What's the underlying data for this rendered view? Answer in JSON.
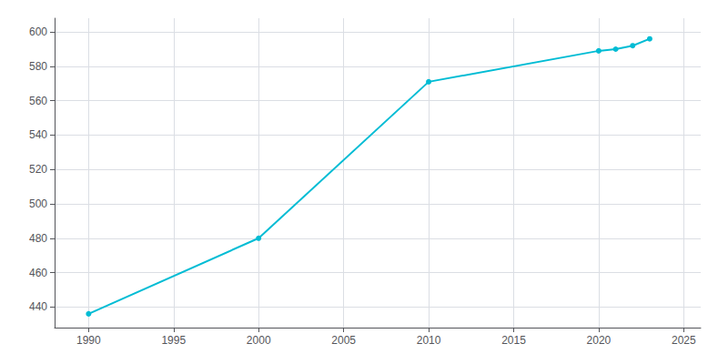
{
  "chart_data": {
    "type": "line",
    "x": [
      1990,
      2000,
      2010,
      2020,
      2021,
      2022,
      2023
    ],
    "values": [
      436,
      480,
      571,
      589,
      590,
      592,
      596
    ],
    "color": "#00bcd4",
    "marker": "circle",
    "xlim": [
      1988,
      2026
    ],
    "ylim": [
      428,
      608
    ],
    "xticks": [
      1990,
      1995,
      2000,
      2005,
      2010,
      2015,
      2020,
      2025
    ],
    "yticks": [
      440,
      460,
      480,
      500,
      520,
      540,
      560,
      580,
      600
    ],
    "grid": true
  }
}
